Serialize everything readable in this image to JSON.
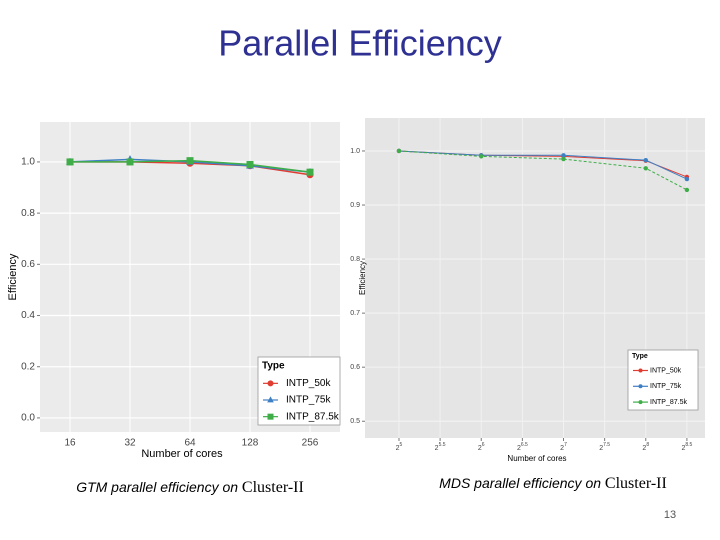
{
  "title": "Parallel Efficiency",
  "captions": [
    {
      "lead": "GTM parallel efficiency on ",
      "tail": "Cluster-II"
    },
    {
      "lead": "MDS parallel efficiency on ",
      "tail": "Cluster-II"
    }
  ],
  "page_number": "13",
  "chart_data": [
    {
      "type": "line",
      "x_label": "Number of cores",
      "y_label": "Efficiency",
      "categories": [
        "16",
        "32",
        "64",
        "128",
        "256"
      ],
      "series": [
        {
          "name": "INTP_50k",
          "color": "#e03c31",
          "marker": "circle",
          "values": [
            1.0,
            1.0,
            0.995,
            0.985,
            0.95
          ]
        },
        {
          "name": "INTP_75k",
          "color": "#3f7fc4",
          "marker": "triangle",
          "values": [
            1.0,
            1.01,
            1.0,
            0.985,
            0.96
          ]
        },
        {
          "name": "INTP_87.5k",
          "color": "#3fae49",
          "marker": "square",
          "values": [
            1.0,
            1.0,
            1.005,
            0.99,
            0.96
          ]
        }
      ],
      "ylim": [
        -0.055,
        1.156
      ],
      "yticks": [
        {
          "value": 0,
          "label": "0.0"
        },
        0.2,
        0.4,
        0.6,
        0.8,
        {
          "value": 1,
          "label": "1.0"
        }
      ],
      "grid": true,
      "legend": "bottom-right",
      "legend_title": "Type"
    },
    {
      "type": "line",
      "x_label": "Number of cores",
      "y_label": "Efficiency",
      "x": [
        5,
        6,
        7,
        8,
        8.5
      ],
      "xlim": [
        4.587,
        8.72
      ],
      "xticks": [
        {
          "value": 5,
          "label": "2",
          "sup": "5"
        },
        {
          "value": 5.5,
          "label": "2",
          "sup": "5.5"
        },
        {
          "value": 6,
          "label": "2",
          "sup": "6"
        },
        {
          "value": 6.5,
          "label": "2",
          "sup": "6.5"
        },
        {
          "value": 7,
          "label": "2",
          "sup": "7"
        },
        {
          "value": 7.5,
          "label": "2",
          "sup": "7.5"
        },
        {
          "value": 8,
          "label": "2",
          "sup": "8"
        },
        {
          "value": 8.5,
          "label": "2",
          "sup": "8.5"
        }
      ],
      "series": [
        {
          "name": "INTP_50k",
          "color": "#e03c31",
          "marker": "circle",
          "values": [
            1.0,
            0.992,
            0.99,
            0.982,
            0.952
          ]
        },
        {
          "name": "INTP_75k",
          "color": "#3f7fc4",
          "marker": "circle",
          "values": [
            1.0,
            0.992,
            0.992,
            0.983,
            0.948
          ]
        },
        {
          "name": "INTP_87.5k",
          "color": "#3fae49",
          "marker": "circle",
          "values": [
            1.0,
            0.99,
            0.985,
            0.968,
            0.928
          ]
        }
      ],
      "ylim": [
        0.469,
        1.061
      ],
      "yticks": [
        0.5,
        0.6,
        0.7,
        0.8,
        0.9,
        {
          "value": 1,
          "label": "1.0"
        }
      ],
      "grid": true,
      "legend": "bottom-right",
      "legend_title": "Type"
    }
  ]
}
